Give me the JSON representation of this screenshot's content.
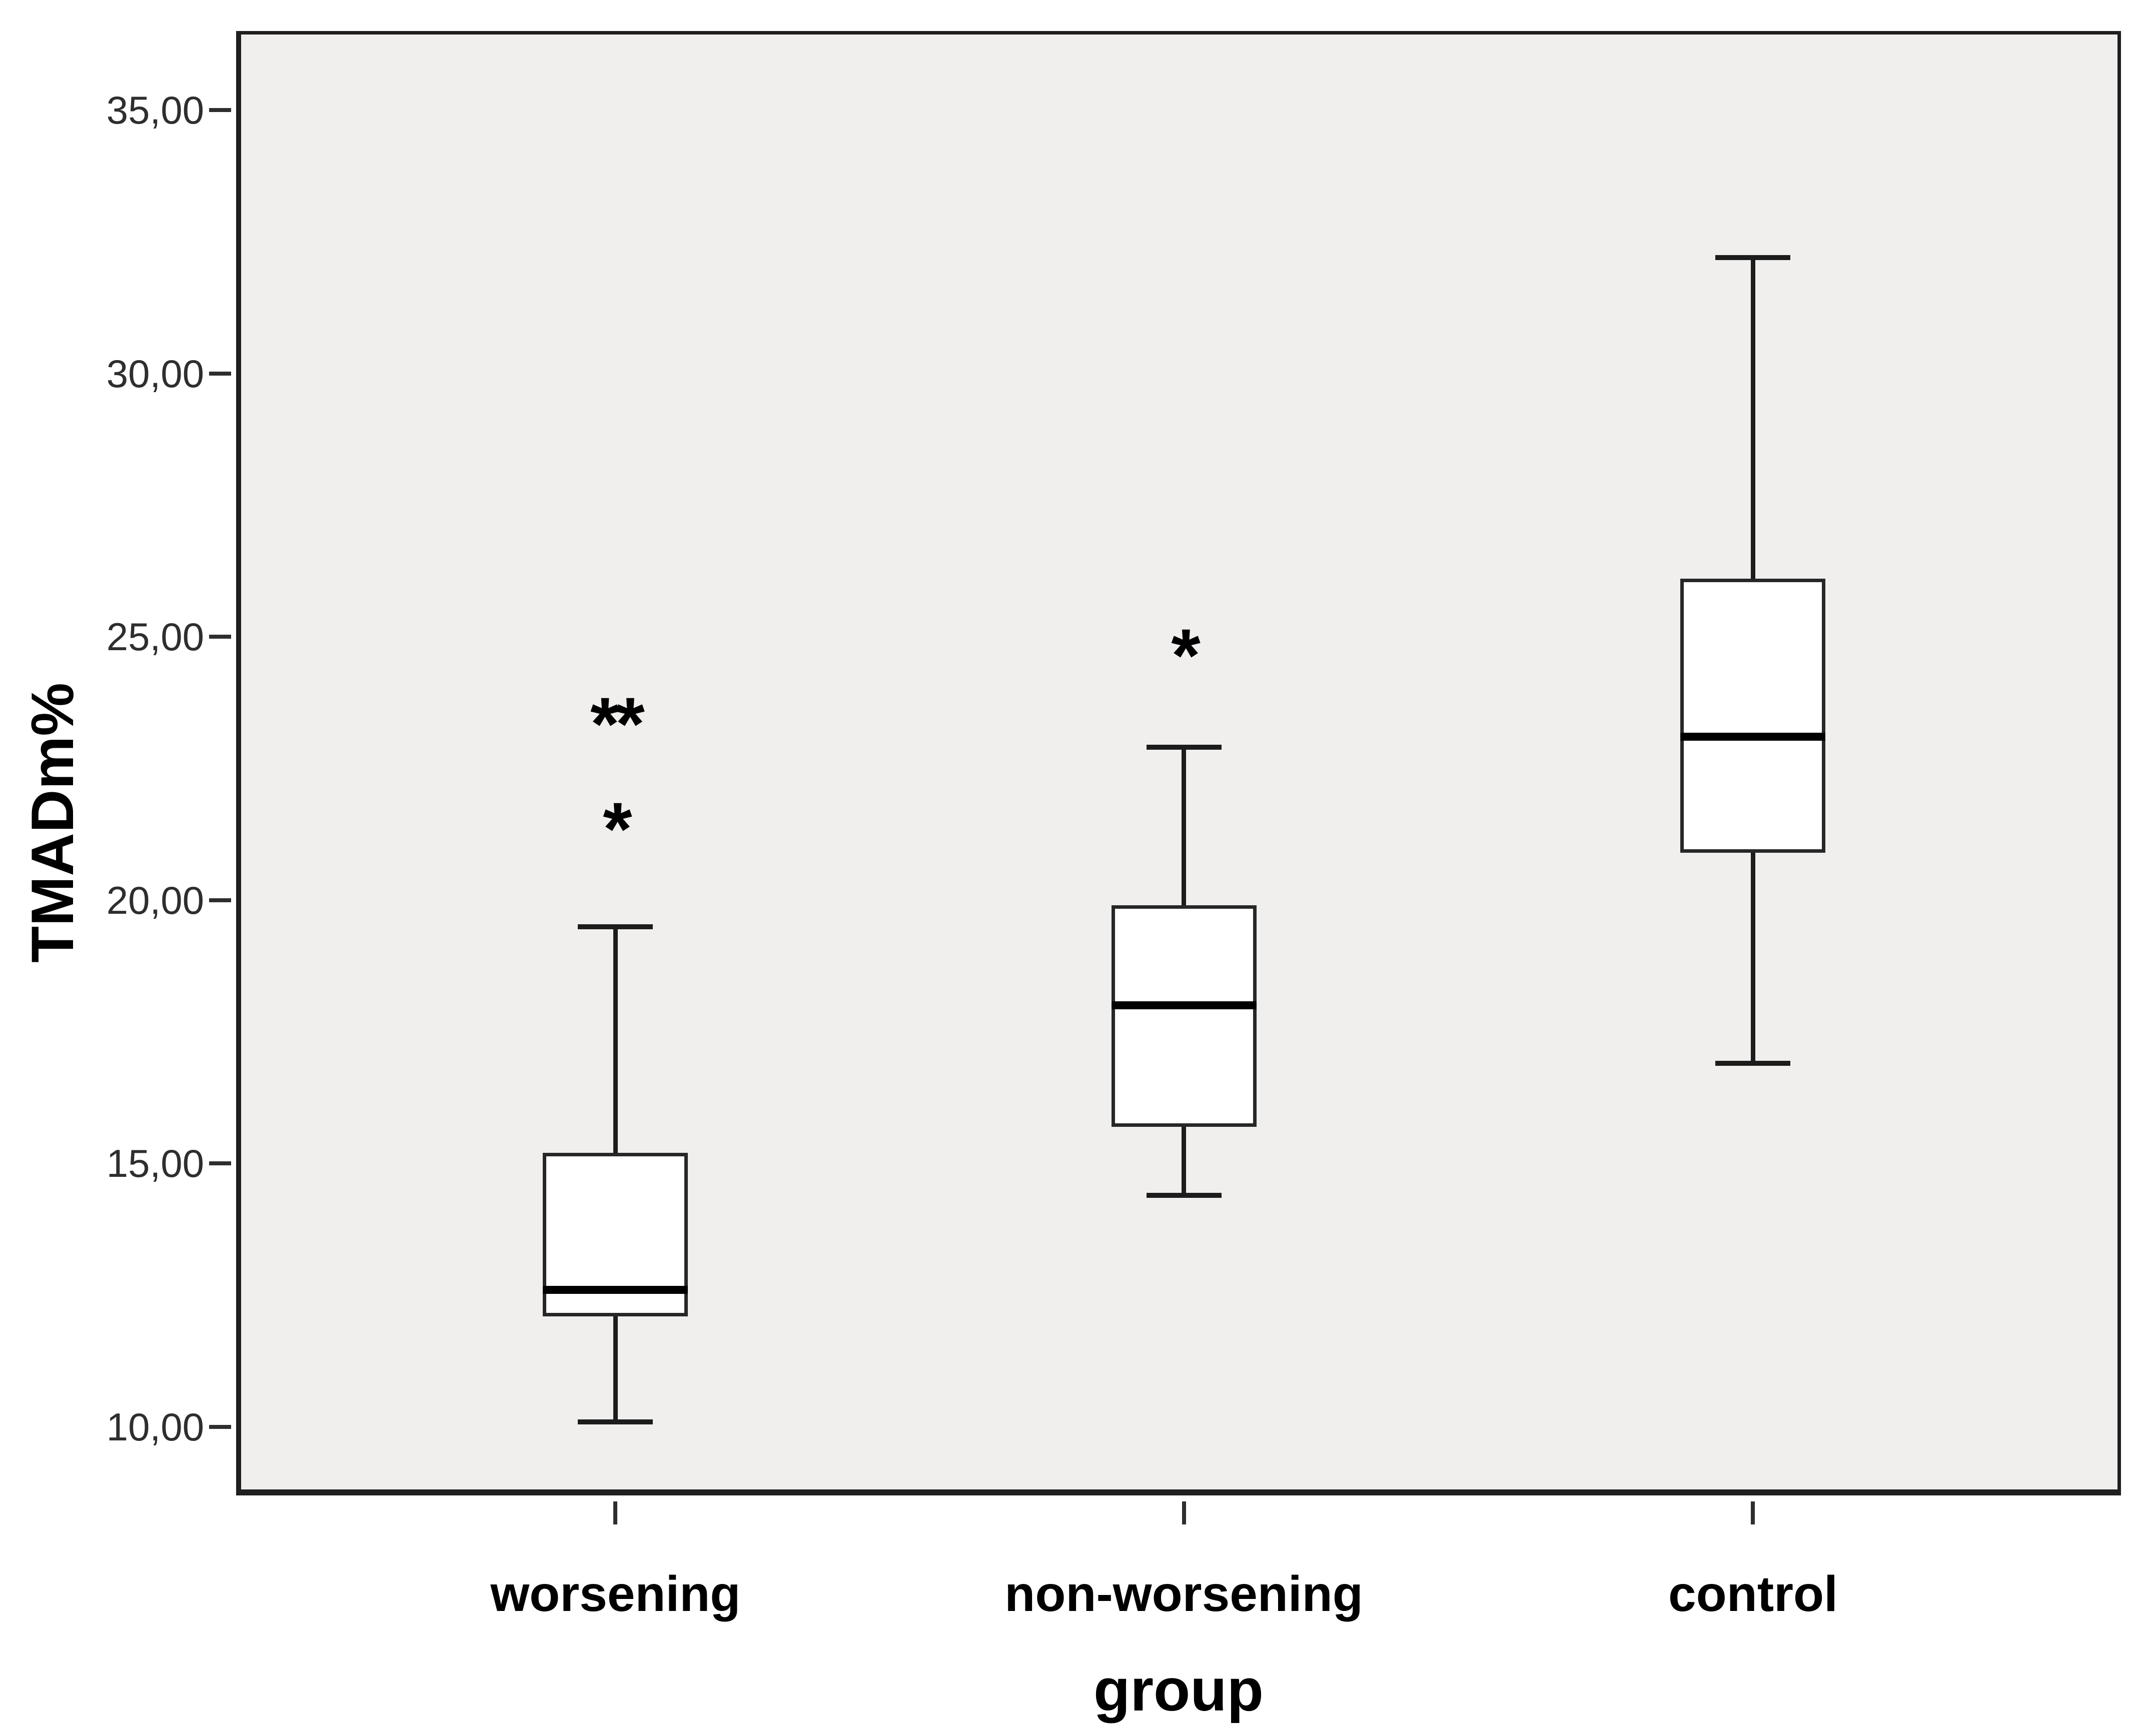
{
  "figure": {
    "background_color": "#ffffff",
    "plot_background_color": "#f0efed",
    "frame_color": "#1f1f1f",
    "text_color": "#000000",
    "tick_color": "#2e2e2e"
  },
  "chart_data": {
    "type": "boxplot",
    "title": "",
    "xlabel": "group",
    "ylabel": "TMADm%",
    "categories": [
      "worsening",
      "non-worsening",
      "control"
    ],
    "ylim": [
      8.7,
      36.5
    ],
    "grid": false,
    "legend_position": "none",
    "y_ticks": [
      {
        "value": 10,
        "label": "10,00"
      },
      {
        "value": 15,
        "label": "15,00"
      },
      {
        "value": 20,
        "label": "20,00"
      },
      {
        "value": 25,
        "label": "25,00"
      },
      {
        "value": 30,
        "label": "30,00"
      },
      {
        "value": 35,
        "label": "35,00"
      }
    ],
    "series": [
      {
        "category": "worsening",
        "whisker_low": 10.1,
        "q1": 12.1,
        "median": 12.6,
        "q3": 15.2,
        "whisker_high": 19.5,
        "outliers": [
          {
            "value": 21.4,
            "marker": "*"
          },
          {
            "value": 23.4,
            "marker": "**"
          }
        ]
      },
      {
        "category": "non-worsening",
        "whisker_low": 14.4,
        "q1": 15.7,
        "median": 18.0,
        "q3": 19.9,
        "whisker_high": 22.9,
        "outliers": [
          {
            "value": 24.7,
            "marker": "*"
          }
        ]
      },
      {
        "category": "control",
        "whisker_low": 16.9,
        "q1": 20.9,
        "median": 23.1,
        "q3": 26.1,
        "whisker_high": 32.2,
        "outliers": []
      }
    ]
  }
}
